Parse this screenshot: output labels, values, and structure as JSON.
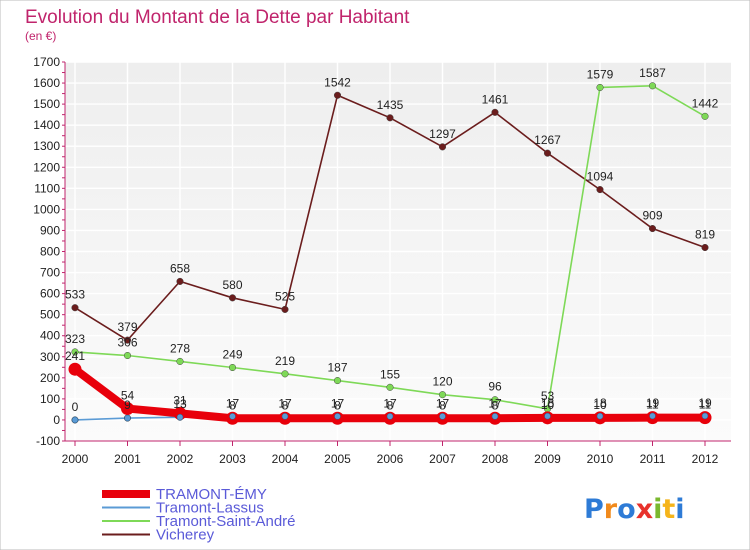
{
  "chart_data": {
    "type": "line",
    "title": "Evolution du Montant de la Dette par Habitant",
    "subtitle": "(en €)",
    "x": [
      "2000",
      "2001",
      "2002",
      "2003",
      "2004",
      "2005",
      "2006",
      "2007",
      "2008",
      "2009",
      "2010",
      "2011",
      "2012"
    ],
    "ylim": [
      -100,
      1700
    ],
    "yticks": [
      -100,
      0,
      100,
      200,
      300,
      400,
      500,
      600,
      700,
      800,
      900,
      1000,
      1100,
      1200,
      1300,
      1400,
      1500,
      1600,
      1700
    ],
    "grid": true,
    "legend_position": "bottom-left",
    "series": [
      {
        "name": "TRAMONT-ÉMY",
        "color": "#e8000b",
        "values": [
          241,
          54,
          31,
          8,
          8,
          8,
          8,
          8,
          8,
          10,
          10,
          11,
          11
        ],
        "labels": [
          "241",
          "54",
          "31",
          "8",
          "8",
          "8",
          "8",
          "8",
          "8",
          "10",
          "10",
          "11",
          "11"
        ]
      },
      {
        "name": "Tramont-Lassus",
        "color": "#5b9bd5",
        "values": [
          0,
          9,
          13,
          17,
          17,
          17,
          17,
          17,
          17,
          18,
          18,
          19,
          19
        ],
        "labels": [
          "0",
          "9",
          "13",
          "17",
          "17",
          "17",
          "17",
          "17",
          "17",
          "18",
          "18",
          "19",
          "19"
        ]
      },
      {
        "name": "Tramont-Saint-André",
        "color": "#7ed957",
        "values": [
          323,
          306,
          278,
          249,
          219,
          187,
          155,
          120,
          96,
          53,
          1579,
          1587,
          1442
        ],
        "labels": [
          "323",
          "306",
          "278",
          "249",
          "219",
          "187",
          "155",
          "120",
          "96",
          "53",
          "1579",
          "1587",
          "1442"
        ]
      },
      {
        "name": "Vicherey",
        "color": "#6b1d1d",
        "values": [
          533,
          379,
          658,
          580,
          525,
          1542,
          1435,
          1297,
          1461,
          1267,
          1094,
          909,
          819
        ],
        "labels": [
          "533",
          "379",
          "658",
          "580",
          "525",
          "1542",
          "1435",
          "1297",
          "1461",
          "1267",
          "1094",
          "909",
          "819"
        ]
      }
    ]
  },
  "logo": {
    "text": "Proxiti"
  }
}
